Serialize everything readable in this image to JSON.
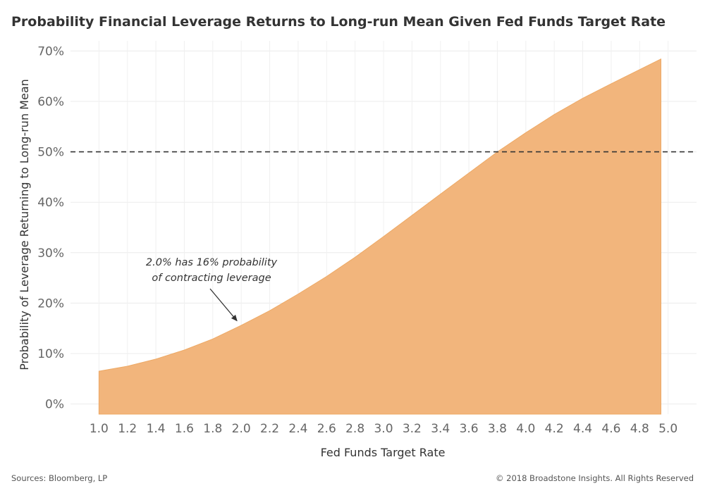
{
  "title": "Probability Financial Leverage Returns to Long-run Mean Given Fed Funds Target Rate",
  "footer": {
    "source": "Sources: Bloomberg, LP",
    "copyright": "© 2018 Broadstone Insights. All Rights Reserved"
  },
  "chart_data": {
    "type": "area",
    "xlabel": "Fed Funds Target Rate",
    "ylabel": "Probability of Leverage Returning to Long-run Mean",
    "xlim": [
      0.8,
      5.2
    ],
    "ylim": [
      -2,
      72
    ],
    "x_ticks": [
      "1.0",
      "1.2",
      "1.4",
      "1.6",
      "1.8",
      "2.0",
      "2.2",
      "2.4",
      "2.6",
      "2.8",
      "3.0",
      "3.2",
      "3.4",
      "3.6",
      "3.8",
      "4.0",
      "4.2",
      "4.4",
      "4.6",
      "4.8",
      "5.0"
    ],
    "y_ticks": [
      "0%",
      "10%",
      "20%",
      "30%",
      "40%",
      "50%",
      "60%",
      "70%"
    ],
    "color": "#f2b57c",
    "x": [
      1.0,
      1.2,
      1.4,
      1.6,
      1.8,
      2.0,
      2.2,
      2.4,
      2.6,
      2.8,
      3.0,
      3.2,
      3.4,
      3.6,
      3.8,
      4.0,
      4.2,
      4.4,
      4.6,
      4.8,
      4.95
    ],
    "values": [
      6.5,
      7.5,
      8.9,
      10.7,
      12.9,
      15.6,
      18.5,
      21.8,
      25.3,
      29.1,
      33.2,
      37.4,
      41.6,
      45.8,
      50.0,
      53.8,
      57.4,
      60.6,
      63.5,
      66.3,
      68.4
    ],
    "reference_line": {
      "y": 50,
      "style": "dashed",
      "color": "#333333"
    },
    "annotation": {
      "lines": [
        "2.0% has 16% probability",
        "of contracting leverage"
      ],
      "arrow_to": [
        1.97,
        16.5
      ]
    },
    "grid": true
  }
}
